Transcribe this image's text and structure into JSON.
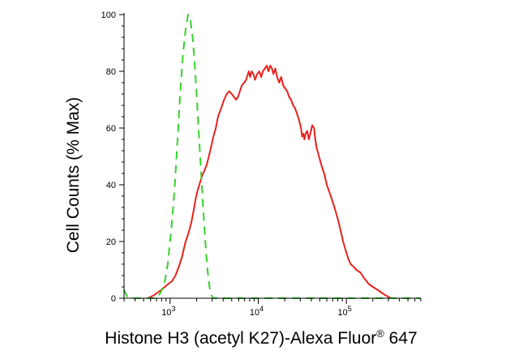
{
  "chart_data": {
    "type": "line",
    "xlabel_main": "Histone H3 (acetyl K27)-Alexa Fluor",
    "xlabel_sup": "®",
    "xlabel_tail": " 647",
    "ylabel": "Cell Counts (% Max)",
    "x_scale": "log",
    "xlim": [
      300,
      700000
    ],
    "ylim": [
      0,
      100
    ],
    "x_ticks": [
      {
        "value": 1000,
        "base": "10",
        "exp": "3"
      },
      {
        "value": 10000,
        "base": "10",
        "exp": "4"
      },
      {
        "value": 100000,
        "base": "10",
        "exp": "5"
      }
    ],
    "y_ticks": [
      {
        "value": 0,
        "label": "0"
      },
      {
        "value": 20,
        "label": "20"
      },
      {
        "value": 40,
        "label": "40"
      },
      {
        "value": 60,
        "label": "60"
      },
      {
        "value": 80,
        "label": "80"
      },
      {
        "value": 100,
        "label": "100"
      }
    ],
    "grid": false,
    "series": [
      {
        "style": "solid",
        "color": "#e8211d",
        "points": [
          [
            560,
            0
          ],
          [
            650,
            1
          ],
          [
            720,
            2
          ],
          [
            800,
            3
          ],
          [
            870,
            4
          ],
          [
            950,
            5
          ],
          [
            1050,
            6
          ],
          [
            1150,
            8
          ],
          [
            1250,
            11
          ],
          [
            1350,
            14
          ],
          [
            1420,
            17
          ],
          [
            1500,
            20
          ],
          [
            1580,
            22
          ],
          [
            1650,
            24
          ],
          [
            1750,
            27
          ],
          [
            1850,
            31
          ],
          [
            1950,
            35
          ],
          [
            2050,
            38
          ],
          [
            2150,
            40
          ],
          [
            2300,
            43
          ],
          [
            2450,
            45
          ],
          [
            2600,
            47
          ],
          [
            2750,
            50
          ],
          [
            2900,
            53
          ],
          [
            3100,
            57
          ],
          [
            3300,
            60
          ],
          [
            3500,
            64
          ],
          [
            3800,
            67
          ],
          [
            4100,
            70
          ],
          [
            4400,
            72
          ],
          [
            4700,
            73
          ],
          [
            5000,
            72
          ],
          [
            5300,
            71
          ],
          [
            5600,
            70
          ],
          [
            5900,
            71
          ],
          [
            6200,
            73
          ],
          [
            6500,
            75
          ],
          [
            6900,
            76
          ],
          [
            7300,
            77
          ],
          [
            7800,
            80
          ],
          [
            8100,
            78
          ],
          [
            8400,
            80
          ],
          [
            8800,
            79
          ],
          [
            9200,
            77
          ],
          [
            9700,
            79
          ],
          [
            10300,
            80
          ],
          [
            10800,
            78
          ],
          [
            11300,
            80
          ],
          [
            11900,
            81
          ],
          [
            12500,
            82
          ],
          [
            13100,
            80
          ],
          [
            13700,
            82
          ],
          [
            14300,
            81
          ],
          [
            14900,
            79
          ],
          [
            15600,
            81
          ],
          [
            16400,
            78
          ],
          [
            17300,
            76
          ],
          [
            18200,
            78
          ],
          [
            19200,
            75
          ],
          [
            20200,
            74
          ],
          [
            21300,
            73
          ],
          [
            22400,
            71
          ],
          [
            23600,
            70
          ],
          [
            24900,
            68
          ],
          [
            26200,
            67
          ],
          [
            27600,
            65
          ],
          [
            29000,
            63
          ],
          [
            30600,
            60
          ],
          [
            31500,
            57
          ],
          [
            32500,
            58
          ],
          [
            33500,
            56
          ],
          [
            34500,
            58
          ],
          [
            36000,
            59
          ],
          [
            37500,
            56
          ],
          [
            39000,
            58
          ],
          [
            41000,
            61
          ],
          [
            43000,
            60
          ],
          [
            44500,
            56
          ],
          [
            46000,
            53
          ],
          [
            49000,
            50
          ],
          [
            52000,
            47
          ],
          [
            56000,
            44
          ],
          [
            60000,
            40
          ],
          [
            65000,
            37
          ],
          [
            70000,
            34
          ],
          [
            75000,
            31
          ],
          [
            80000,
            28
          ],
          [
            86000,
            24
          ],
          [
            92000,
            20
          ],
          [
            98000,
            17
          ],
          [
            105000,
            14
          ],
          [
            112000,
            12
          ],
          [
            122000,
            11
          ],
          [
            130000,
            10
          ],
          [
            145000,
            9
          ],
          [
            160000,
            7
          ],
          [
            180000,
            5
          ],
          [
            200000,
            4
          ],
          [
            225000,
            3
          ],
          [
            250000,
            2
          ],
          [
            280000,
            1
          ],
          [
            320000,
            0
          ]
        ]
      },
      {
        "style": "dashed",
        "color": "#35d22a",
        "points": [
          [
            300,
            3
          ],
          [
            320,
            1
          ],
          [
            340,
            0
          ],
          [
            700,
            0
          ],
          [
            780,
            2
          ],
          [
            860,
            5
          ],
          [
            940,
            12
          ],
          [
            1030,
            24
          ],
          [
            1120,
            38
          ],
          [
            1210,
            55
          ],
          [
            1300,
            72
          ],
          [
            1400,
            86
          ],
          [
            1500,
            95
          ],
          [
            1600,
            100
          ],
          [
            1700,
            98
          ],
          [
            1800,
            92
          ],
          [
            1900,
            83
          ],
          [
            2000,
            72
          ],
          [
            2100,
            60
          ],
          [
            2220,
            47
          ],
          [
            2350,
            34
          ],
          [
            2450,
            25
          ],
          [
            2560,
            16
          ],
          [
            2680,
            9
          ],
          [
            2800,
            4
          ],
          [
            2950,
            1
          ],
          [
            3100,
            0
          ],
          [
            5000,
            0
          ],
          [
            700000,
            0
          ]
        ]
      }
    ]
  }
}
